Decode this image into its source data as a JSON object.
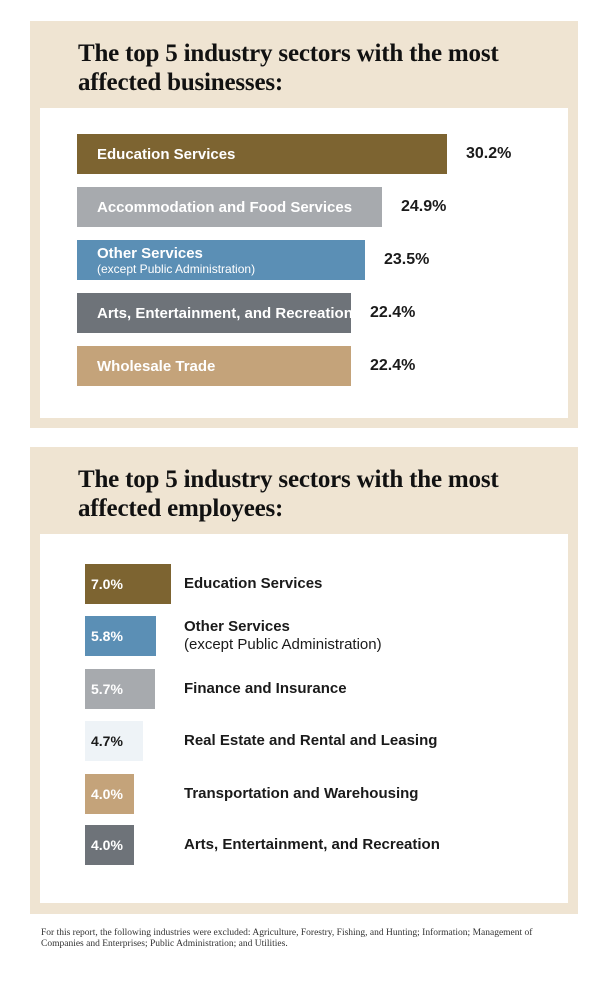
{
  "chart_data": [
    {
      "type": "bar",
      "orientation": "horizontal",
      "title": "The top 5 industry sectors with the most affected businesses:",
      "unit": "%",
      "xlim": [
        0,
        30.2
      ],
      "bars": [
        {
          "label": "Education Services",
          "sub": "",
          "value": 30.2,
          "value_label": "30.2%",
          "color": "#7d6431"
        },
        {
          "label": "Accommodation and Food Services",
          "sub": "",
          "value": 24.9,
          "value_label": "24.9%",
          "color": "#a7aaae"
        },
        {
          "label": "Other Services",
          "sub": "(except Public Administration)",
          "value": 23.5,
          "value_label": "23.5%",
          "color": "#5b8fb5"
        },
        {
          "label": "Arts, Entertainment, and Recreation",
          "sub": "",
          "value": 22.4,
          "value_label": "22.4%",
          "color": "#6e7379"
        },
        {
          "label": "Wholesale Trade",
          "sub": "",
          "value": 22.4,
          "value_label": "22.4%",
          "color": "#c4a37a"
        }
      ]
    },
    {
      "type": "bar",
      "orientation": "horizontal",
      "title": "The top 5 industry sectors with the most affected employees:",
      "unit": "%",
      "xlim": [
        0,
        7.0
      ],
      "bars": [
        {
          "label": "Education Services",
          "sub": "",
          "value": 7.0,
          "value_label": "7.0%",
          "color": "#7d6431"
        },
        {
          "label": "Other Services",
          "sub": "(except Public Administration)",
          "value": 5.8,
          "value_label": "5.8%",
          "color": "#5b8fb5"
        },
        {
          "label": "Finance and Insurance",
          "sub": "",
          "value": 5.7,
          "value_label": "5.7%",
          "color": "#a7aaae"
        },
        {
          "label": "Real Estate and Rental and Leasing",
          "sub": "",
          "value": 4.7,
          "value_label": "4.7%",
          "color": "#eef3f7"
        },
        {
          "label": "Transportation and Warehousing",
          "sub": "",
          "value": 4.0,
          "value_label": "4.0%",
          "color": "#c4a37a"
        },
        {
          "label": "Arts, Entertainment, and Recreation",
          "sub": "",
          "value": 4.0,
          "value_label": "4.0%",
          "color": "#6e7379"
        }
      ]
    }
  ],
  "footnote": "For this report, the following industries were excluded: Agriculture, Forestry, Fishing, and Hunting; Information; Management of Companies and Enterprises; Public Administration; and Utilities."
}
